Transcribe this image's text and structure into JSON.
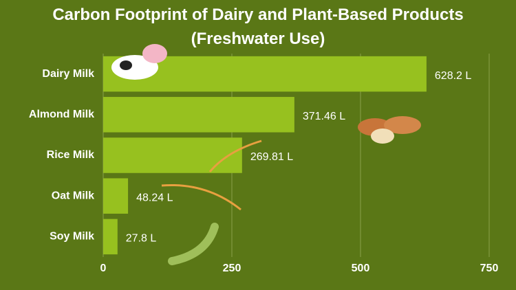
{
  "chart_data": {
    "type": "bar",
    "orientation": "horizontal",
    "title": "Carbon Footprint of Dairy and Plant-Based Products (Freshwater Use)",
    "categories": [
      "Dairy Milk",
      "Almond Milk",
      "Rice Milk",
      "Oat Milk",
      "Soy Milk"
    ],
    "values": [
      628.2,
      371.46,
      269.81,
      48.24,
      27.8
    ],
    "value_labels": [
      "628.2 L",
      "371.46 L",
      "269.81 L",
      "48.24 L",
      "27.8 L"
    ],
    "color": "#97c11f",
    "xlim": [
      0,
      750
    ],
    "xticks": [
      0,
      250,
      500,
      750
    ],
    "grid": true
  }
}
